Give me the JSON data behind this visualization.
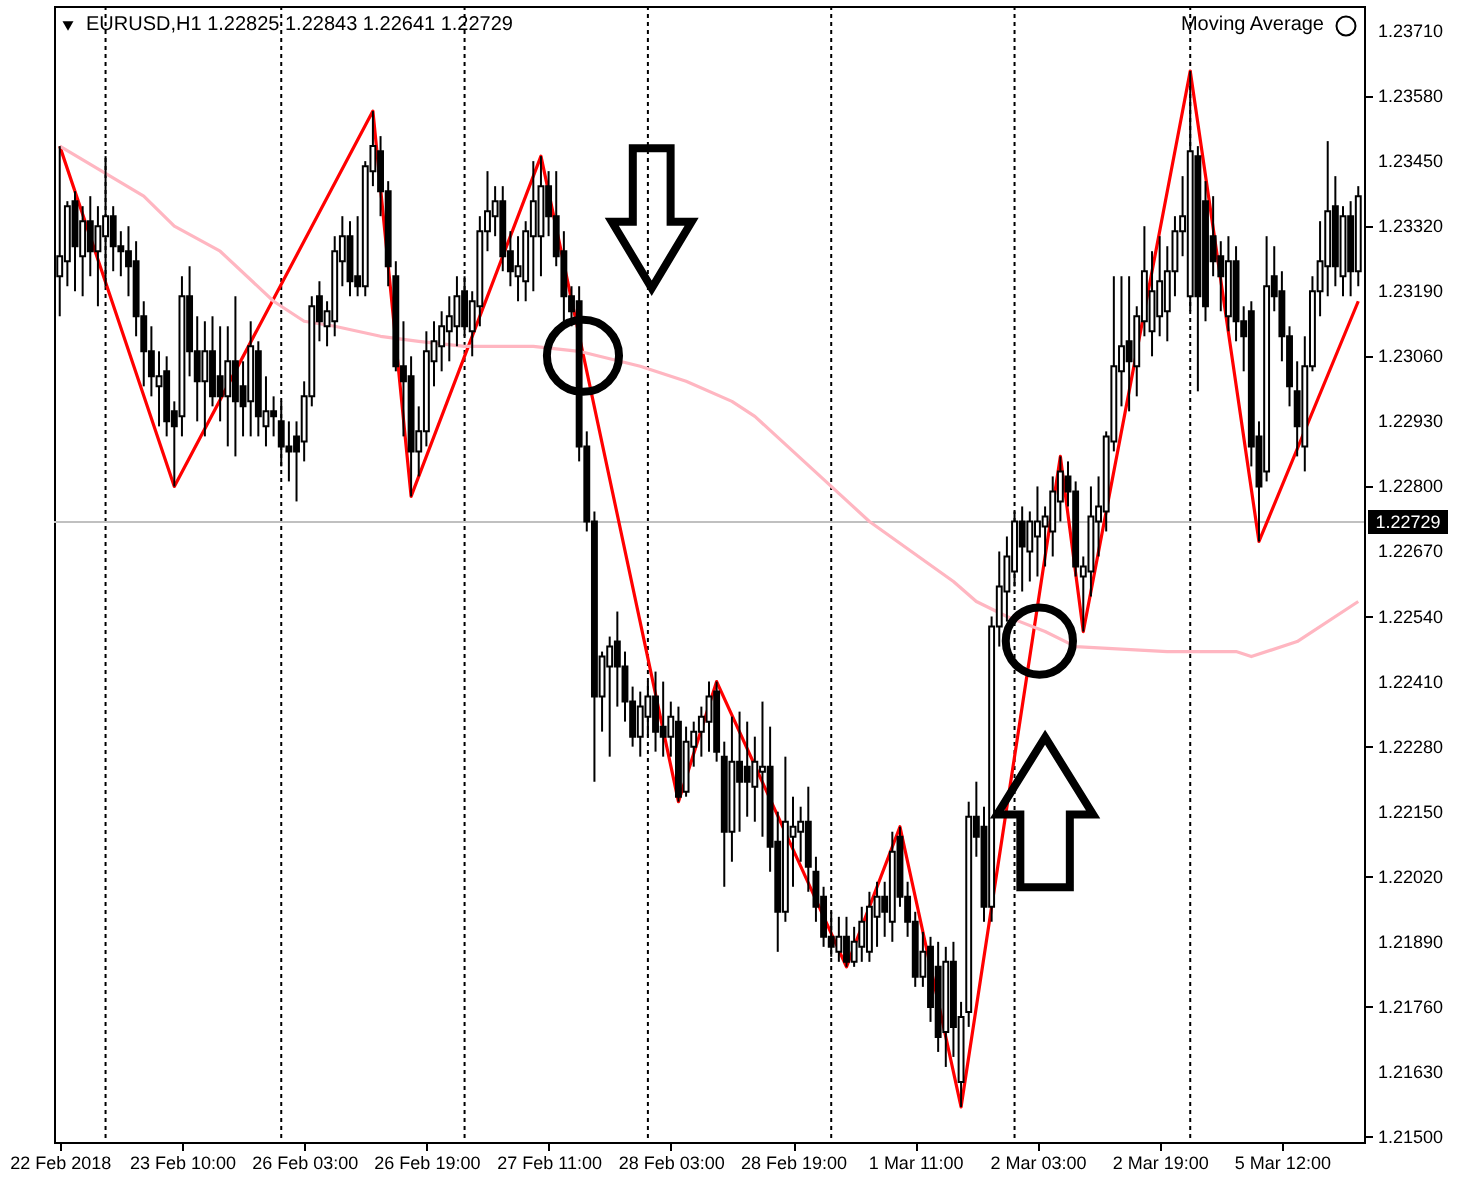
{
  "chart_data": {
    "type": "candlestick",
    "title": "EURUSD,H1  1.22825 1.22843 1.22641 1.22729",
    "annotations": [
      "Moving Average"
    ],
    "categories": [
      "22 Feb 2018",
      null,
      null,
      null,
      null,
      null,
      null,
      null,
      null,
      null,
      null,
      null,
      null,
      null,
      null,
      null,
      "23 Feb 10:00",
      null,
      null,
      null,
      null,
      null,
      null,
      null,
      null,
      null,
      null,
      null,
      null,
      null,
      null,
      null,
      "26 Feb 03:00",
      null,
      null,
      null,
      null,
      null,
      null,
      null,
      null,
      null,
      null,
      null,
      null,
      null,
      null,
      null,
      "26 Feb 19:00",
      null,
      null,
      null,
      null,
      null,
      null,
      null,
      null,
      null,
      null,
      null,
      null,
      null,
      null,
      null,
      "27 Feb 11:00",
      null,
      null,
      null,
      null,
      null,
      null,
      null,
      null,
      null,
      null,
      null,
      null,
      null,
      null,
      null,
      "28 Feb 03:00",
      null,
      null,
      null,
      null,
      null,
      null,
      null,
      null,
      null,
      null,
      null,
      null,
      null,
      null,
      null,
      "28 Feb 19:00",
      null,
      null,
      null,
      null,
      null,
      null,
      null,
      null,
      null,
      null,
      null,
      null,
      null,
      null,
      null,
      "1 Mar 11:00",
      null,
      null,
      null,
      null,
      null,
      null,
      null,
      null,
      null,
      null,
      null,
      null,
      null,
      null,
      null,
      "2 Mar 03:00",
      null,
      null,
      null,
      null,
      null,
      null,
      null,
      null,
      null,
      null,
      null,
      null,
      null,
      null,
      null,
      "2 Mar 19:00",
      null,
      null,
      null,
      null,
      null,
      null,
      null,
      null,
      null,
      null,
      null,
      null,
      null,
      null,
      null,
      "5 Mar 12:00",
      null,
      null,
      null,
      null,
      null,
      null,
      null,
      null,
      null,
      null
    ],
    "ohlc": [
      [
        1.2322,
        1.2348,
        1.2314,
        1.2326
      ],
      [
        1.2325,
        1.2337,
        1.232,
        1.2336
      ],
      [
        1.2337,
        1.2339,
        1.2319,
        1.2328
      ],
      [
        1.2326,
        1.2336,
        1.2318,
        1.2333
      ],
      [
        1.2333,
        1.2338,
        1.2322,
        1.2327
      ],
      [
        1.2327,
        1.2336,
        1.2316,
        1.2332
      ],
      [
        1.233,
        1.2346,
        1.232,
        1.2334
      ],
      [
        1.2334,
        1.2336,
        1.2323,
        1.2328
      ],
      [
        1.2328,
        1.2331,
        1.2322,
        1.2327
      ],
      [
        1.2327,
        1.2332,
        1.2318,
        1.2324
      ],
      [
        1.2325,
        1.2329,
        1.231,
        1.2314
      ],
      [
        1.2314,
        1.2317,
        1.23,
        1.2307
      ],
      [
        1.2307,
        1.2312,
        1.2298,
        1.2302
      ],
      [
        1.23,
        1.2307,
        1.2292,
        1.2302
      ],
      [
        1.2303,
        1.2306,
        1.229,
        1.2293
      ],
      [
        1.2295,
        1.2297,
        1.228,
        1.2292
      ],
      [
        1.2294,
        1.2322,
        1.229,
        1.2318
      ],
      [
        1.2318,
        1.2324,
        1.2302,
        1.2307
      ],
      [
        1.2307,
        1.2314,
        1.2293,
        1.2301
      ],
      [
        1.2301,
        1.2313,
        1.229,
        1.2307
      ],
      [
        1.2307,
        1.2314,
        1.2296,
        1.2298
      ],
      [
        1.2302,
        1.2312,
        1.2293,
        1.2298
      ],
      [
        1.2298,
        1.2312,
        1.2288,
        1.2305
      ],
      [
        1.2305,
        1.2318,
        1.2286,
        1.2297
      ],
      [
        1.23,
        1.2305,
        1.229,
        1.2296
      ],
      [
        1.2297,
        1.2313,
        1.229,
        1.2308
      ],
      [
        1.2307,
        1.2309,
        1.229,
        1.2294
      ],
      [
        1.2292,
        1.2302,
        1.2288,
        1.2295
      ],
      [
        1.2295,
        1.2298,
        1.229,
        1.2294
      ],
      [
        1.2293,
        1.2297,
        1.2284,
        1.2288
      ],
      [
        1.2288,
        1.2293,
        1.2281,
        1.2287
      ],
      [
        1.229,
        1.2293,
        1.2277,
        1.2287
      ],
      [
        1.2289,
        1.2301,
        1.2285,
        1.2298
      ],
      [
        1.2298,
        1.2318,
        1.2296,
        1.2316
      ],
      [
        1.2318,
        1.2321,
        1.2309,
        1.2313
      ],
      [
        1.2312,
        1.2317,
        1.2308,
        1.2315
      ],
      [
        1.2313,
        1.233,
        1.231,
        1.2327
      ],
      [
        1.2325,
        1.2334,
        1.232,
        1.233
      ],
      [
        1.233,
        1.2333,
        1.2318,
        1.2321
      ],
      [
        1.2322,
        1.2334,
        1.2318,
        1.232
      ],
      [
        1.232,
        1.2345,
        1.2318,
        1.2344
      ],
      [
        1.2343,
        1.2355,
        1.234,
        1.2348
      ],
      [
        1.2347,
        1.235,
        1.2334,
        1.2339
      ],
      [
        1.2339,
        1.2341,
        1.232,
        1.2324
      ],
      [
        1.2322,
        1.2325,
        1.2303,
        1.2304
      ],
      [
        1.2304,
        1.2313,
        1.229,
        1.2301
      ],
      [
        1.2302,
        1.2306,
        1.2278,
        1.2287
      ],
      [
        1.2287,
        1.2296,
        1.2282,
        1.2291
      ],
      [
        1.2291,
        1.2311,
        1.2288,
        1.2307
      ],
      [
        1.2305,
        1.2313,
        1.23,
        1.2309
      ],
      [
        1.2308,
        1.2315,
        1.2303,
        1.2312
      ],
      [
        1.2311,
        1.2318,
        1.2305,
        1.2314
      ],
      [
        1.2312,
        1.2322,
        1.2308,
        1.2318
      ],
      [
        1.2319,
        1.2322,
        1.231,
        1.2312
      ],
      [
        1.2311,
        1.2319,
        1.2306,
        1.2317
      ],
      [
        1.2316,
        1.2334,
        1.2312,
        1.2331
      ],
      [
        1.2331,
        1.2343,
        1.2327,
        1.2335
      ],
      [
        1.2334,
        1.234,
        1.233,
        1.2337
      ],
      [
        1.2337,
        1.234,
        1.2323,
        1.2326
      ],
      [
        1.2327,
        1.2331,
        1.232,
        1.2323
      ],
      [
        1.2322,
        1.233,
        1.2317,
        1.2324
      ],
      [
        1.2321,
        1.2333,
        1.2317,
        1.2331
      ],
      [
        1.233,
        1.2345,
        1.2319,
        1.2337
      ],
      [
        1.233,
        1.2346,
        1.2322,
        1.234
      ],
      [
        1.234,
        1.2343,
        1.233,
        1.2334
      ],
      [
        1.2334,
        1.2343,
        1.2324,
        1.2326
      ],
      [
        1.2327,
        1.2331,
        1.2313,
        1.2318
      ],
      [
        1.2318,
        1.232,
        1.2312,
        1.2315
      ],
      [
        1.2317,
        1.232,
        1.2285,
        1.2288
      ],
      [
        1.2288,
        1.2291,
        1.2271,
        1.2273
      ],
      [
        1.2273,
        1.2275,
        1.2221,
        1.2238
      ],
      [
        1.2238,
        1.2247,
        1.2231,
        1.2246
      ],
      [
        1.2244,
        1.225,
        1.2226,
        1.2248
      ],
      [
        1.2249,
        1.2255,
        1.2236,
        1.2244
      ],
      [
        1.2244,
        1.2247,
        1.2233,
        1.2237
      ],
      [
        1.2237,
        1.224,
        1.2228,
        1.223
      ],
      [
        1.223,
        1.2239,
        1.2226,
        1.2236
      ],
      [
        1.2234,
        1.2241,
        1.223,
        1.2238
      ],
      [
        1.2238,
        1.2243,
        1.2227,
        1.2231
      ],
      [
        1.2232,
        1.2241,
        1.2226,
        1.223
      ],
      [
        1.223,
        1.2237,
        1.2226,
        1.2234
      ],
      [
        1.2233,
        1.2236,
        1.2217,
        1.2218
      ],
      [
        1.2219,
        1.2232,
        1.2218,
        1.2229
      ],
      [
        1.2228,
        1.2233,
        1.2224,
        1.2231
      ],
      [
        1.2231,
        1.2236,
        1.2226,
        1.2234
      ],
      [
        1.2233,
        1.2241,
        1.2227,
        1.2238
      ],
      [
        1.2239,
        1.2241,
        1.2225,
        1.2227
      ],
      [
        1.2226,
        1.2229,
        1.22,
        1.2211
      ],
      [
        1.2211,
        1.2234,
        1.2205,
        1.2225
      ],
      [
        1.2225,
        1.2235,
        1.2211,
        1.2221
      ],
      [
        1.2224,
        1.2233,
        1.2214,
        1.2221
      ],
      [
        1.222,
        1.223,
        1.2213,
        1.2225
      ],
      [
        1.2223,
        1.2237,
        1.221,
        1.2224
      ],
      [
        1.2224,
        1.2232,
        1.2203,
        1.2208
      ],
      [
        1.2209,
        1.2215,
        1.2187,
        1.2195
      ],
      [
        1.2195,
        1.2226,
        1.2193,
        1.2213
      ],
      [
        1.221,
        1.2218,
        1.22,
        1.2212
      ],
      [
        1.2211,
        1.2216,
        1.2205,
        1.2213
      ],
      [
        1.2213,
        1.222,
        1.2199,
        1.2204
      ],
      [
        1.2203,
        1.2206,
        1.2193,
        1.2196
      ],
      [
        1.2198,
        1.22,
        1.2188,
        1.219
      ],
      [
        1.219,
        1.2195,
        1.2186,
        1.2188
      ],
      [
        1.2187,
        1.2194,
        1.2185,
        1.219
      ],
      [
        1.219,
        1.2194,
        1.2184,
        1.2185
      ],
      [
        1.2185,
        1.2192,
        1.2184,
        1.2189
      ],
      [
        1.2188,
        1.2196,
        1.2185,
        1.2193
      ],
      [
        1.2187,
        1.2199,
        1.2185,
        1.2196
      ],
      [
        1.2194,
        1.2201,
        1.2188,
        1.2198
      ],
      [
        1.2198,
        1.2201,
        1.219,
        1.2195
      ],
      [
        1.2193,
        1.2211,
        1.2189,
        1.2207
      ],
      [
        1.221,
        1.2212,
        1.2196,
        1.2198
      ],
      [
        1.2198,
        1.2201,
        1.219,
        1.2193
      ],
      [
        1.2193,
        1.2195,
        1.218,
        1.2182
      ],
      [
        1.2182,
        1.2191,
        1.218,
        1.2187
      ],
      [
        1.2188,
        1.219,
        1.2173,
        1.2176
      ],
      [
        1.2184,
        1.2189,
        1.2167,
        1.217
      ],
      [
        1.2171,
        1.2188,
        1.2164,
        1.2185
      ],
      [
        1.2185,
        1.2189,
        1.2166,
        1.2172
      ],
      [
        1.2161,
        1.2177,
        1.2156,
        1.2174
      ],
      [
        1.2175,
        1.2217,
        1.2172,
        1.2214
      ],
      [
        1.2214,
        1.2221,
        1.2206,
        1.221
      ],
      [
        1.2212,
        1.2216,
        1.2193,
        1.2196
      ],
      [
        1.2196,
        1.2254,
        1.2193,
        1.2252
      ],
      [
        1.2252,
        1.2267,
        1.2248,
        1.226
      ],
      [
        1.2259,
        1.227,
        1.2253,
        1.2266
      ],
      [
        1.2263,
        1.2275,
        1.226,
        1.2273
      ],
      [
        1.2273,
        1.2276,
        1.2259,
        1.2268
      ],
      [
        1.2267,
        1.2275,
        1.2261,
        1.2273
      ],
      [
        1.227,
        1.228,
        1.2262,
        1.2273
      ],
      [
        1.2272,
        1.2276,
        1.2264,
        1.2274
      ],
      [
        1.2271,
        1.2282,
        1.2266,
        1.2279
      ],
      [
        1.2277,
        1.2286,
        1.2273,
        1.2283
      ],
      [
        1.2282,
        1.2285,
        1.2276,
        1.2279
      ],
      [
        1.2279,
        1.2281,
        1.2262,
        1.2264
      ],
      [
        1.2262,
        1.2266,
        1.2251,
        1.2264
      ],
      [
        1.2263,
        1.228,
        1.2258,
        1.2274
      ],
      [
        1.2273,
        1.2282,
        1.2266,
        1.2276
      ],
      [
        1.2275,
        1.2291,
        1.2271,
        1.229
      ],
      [
        1.2289,
        1.2322,
        1.2287,
        1.2304
      ],
      [
        1.2303,
        1.2322,
        1.2296,
        1.2308
      ],
      [
        1.2309,
        1.2322,
        1.2295,
        1.2305
      ],
      [
        1.2304,
        1.2316,
        1.2298,
        1.2314
      ],
      [
        1.2313,
        1.2332,
        1.231,
        1.2323
      ],
      [
        1.2311,
        1.2327,
        1.2306,
        1.2319
      ],
      [
        1.2314,
        1.233,
        1.231,
        1.2321
      ],
      [
        1.2315,
        1.2328,
        1.2309,
        1.2323
      ],
      [
        1.2323,
        1.2334,
        1.2318,
        1.2331
      ],
      [
        1.2331,
        1.2342,
        1.2326,
        1.2334
      ],
      [
        1.2318,
        1.2363,
        1.2315,
        1.2347
      ],
      [
        1.2346,
        1.2348,
        1.2299,
        1.2318
      ],
      [
        1.2337,
        1.2341,
        1.2313,
        1.2316
      ],
      [
        1.233,
        1.2338,
        1.2322,
        1.2325
      ],
      [
        1.2326,
        1.2329,
        1.2315,
        1.2322
      ],
      [
        1.2314,
        1.233,
        1.2311,
        1.2325
      ],
      [
        1.2325,
        1.2328,
        1.2309,
        1.2313
      ],
      [
        1.2313,
        1.2316,
        1.2303,
        1.231
      ],
      [
        1.2315,
        1.2317,
        1.2284,
        1.2288
      ],
      [
        1.229,
        1.2293,
        1.2269,
        1.228
      ],
      [
        1.2283,
        1.233,
        1.2281,
        1.232
      ],
      [
        1.2322,
        1.2328,
        1.2315,
        1.2318
      ],
      [
        1.2319,
        1.2323,
        1.2305,
        1.231
      ],
      [
        1.231,
        1.2312,
        1.2296,
        1.23
      ],
      [
        1.2299,
        1.2305,
        1.2286,
        1.2292
      ],
      [
        1.2288,
        1.231,
        1.2283,
        1.2304
      ],
      [
        1.2304,
        1.2322,
        1.2303,
        1.2319
      ],
      [
        1.2319,
        1.2333,
        1.2314,
        1.2325
      ],
      [
        1.2324,
        1.2349,
        1.2318,
        1.2335
      ],
      [
        1.2336,
        1.2342,
        1.232,
        1.2324
      ],
      [
        1.2322,
        1.2336,
        1.2318,
        1.2334
      ],
      [
        1.2334,
        1.2337,
        1.2318,
        1.2323
      ],
      [
        1.2323,
        1.234,
        1.232,
        1.2338
      ]
    ],
    "series": [
      {
        "type": "line",
        "color": "#ff0000",
        "values": [
          1.2348,
          null,
          null,
          null,
          null,
          null,
          null,
          null,
          null,
          null,
          null,
          null,
          null,
          null,
          null,
          1.228,
          null,
          null,
          null,
          null,
          null,
          null,
          null,
          null,
          null,
          null,
          null,
          null,
          null,
          null,
          null,
          null,
          null,
          null,
          null,
          null,
          null,
          null,
          null,
          null,
          null,
          1.2355,
          null,
          null,
          null,
          null,
          1.2278,
          null,
          null,
          null,
          null,
          null,
          null,
          null,
          null,
          null,
          null,
          null,
          null,
          null,
          null,
          null,
          null,
          1.2346,
          null,
          null,
          null,
          null,
          null,
          null,
          null,
          null,
          null,
          null,
          null,
          null,
          null,
          null,
          null,
          null,
          null,
          1.2217,
          null,
          null,
          null,
          null,
          1.2241,
          null,
          null,
          null,
          null,
          null,
          null,
          null,
          null,
          null,
          null,
          null,
          null,
          null,
          null,
          null,
          null,
          1.2184,
          null,
          null,
          null,
          null,
          null,
          null,
          1.2212,
          null,
          null,
          null,
          null,
          null,
          null,
          null,
          1.2156,
          null,
          null,
          null,
          null,
          null,
          null,
          null,
          null,
          null,
          null,
          null,
          null,
          1.2286,
          null,
          null,
          1.2251,
          null,
          null,
          null,
          null,
          null,
          null,
          null,
          null,
          null,
          null,
          null,
          null,
          null,
          1.2363,
          null,
          null,
          null,
          null,
          null,
          null,
          null,
          null,
          1.2269,
          null,
          null,
          null,
          null,
          null,
          null,
          null,
          null,
          null,
          null,
          null,
          null,
          1.2317
        ]
      },
      {
        "type": "line",
        "color": "#ffb6c1",
        "values": [
          1.2348,
          null,
          null,
          null,
          null,
          null,
          null,
          null,
          null,
          null,
          null,
          1.2338,
          null,
          null,
          null,
          1.2332,
          null,
          null,
          null,
          null,
          null,
          1.2327,
          null,
          null,
          null,
          null,
          null,
          null,
          1.2317,
          null,
          null,
          null,
          1.2313,
          null,
          null,
          null,
          1.2312,
          null,
          null,
          null,
          null,
          null,
          1.231,
          null,
          null,
          null,
          null,
          1.2309,
          null,
          null,
          null,
          null,
          null,
          1.2308,
          null,
          null,
          null,
          null,
          null,
          null,
          null,
          null,
          1.2308,
          null,
          null,
          null,
          null,
          null,
          1.2307,
          null,
          null,
          null,
          null,
          null,
          null,
          null,
          1.2304,
          null,
          null,
          null,
          null,
          null,
          1.2301,
          null,
          null,
          null,
          null,
          null,
          1.2297,
          null,
          null,
          1.2294,
          null,
          null,
          null,
          null,
          null,
          null,
          null,
          null,
          null,
          1.228,
          null,
          null,
          null,
          null,
          1.2273,
          null,
          null,
          null,
          null,
          null,
          null,
          null,
          null,
          null,
          null,
          1.2261,
          null,
          null,
          1.2257,
          null,
          null,
          null,
          1.2254,
          null,
          null,
          null,
          null,
          1.2251,
          null,
          null,
          null,
          1.2248,
          null,
          null,
          null,
          null,
          null,
          null,
          null,
          null,
          null,
          null,
          null,
          1.2247,
          null,
          null,
          null,
          null,
          null,
          null,
          null,
          null,
          1.2247,
          null,
          1.2246,
          null,
          null,
          null,
          null,
          null,
          1.2249,
          null,
          null,
          null,
          null,
          null,
          null,
          null,
          1.2257
        ]
      }
    ],
    "ylim": [
      1.2149,
      1.2376
    ],
    "yticks": [
      {
        "value": 1.215,
        "label": "1.21500"
      },
      {
        "value": 1.2163,
        "label": "1.21630"
      },
      {
        "value": 1.2176,
        "label": "1.21760"
      },
      {
        "value": 1.2189,
        "label": "1.21890"
      },
      {
        "value": 1.2202,
        "label": "1.22020"
      },
      {
        "value": 1.2215,
        "label": "1.22150"
      },
      {
        "value": 1.2228,
        "label": "1.22280"
      },
      {
        "value": 1.2241,
        "label": "1.22410"
      },
      {
        "value": 1.2254,
        "label": "1.22540"
      },
      {
        "value": 1.2267,
        "label": "1.22670"
      },
      {
        "value": 1.228,
        "label": "1.22800"
      },
      {
        "value": 1.2293,
        "label": "1.22930"
      },
      {
        "value": 1.2306,
        "label": "1.23060"
      },
      {
        "value": 1.2319,
        "label": "1.23190"
      },
      {
        "value": 1.2332,
        "label": "1.23320"
      },
      {
        "value": 1.2345,
        "label": "1.23450"
      },
      {
        "value": 1.2358,
        "label": "1.23580"
      },
      {
        "value": 1.2371,
        "label": "1.23710"
      }
    ],
    "ref_lines": [
      {
        "axis": "y",
        "value": 1.22729,
        "label": "1.22729",
        "color": "#c0c0c0",
        "line_style": "solid"
      }
    ],
    "grid": false
  }
}
